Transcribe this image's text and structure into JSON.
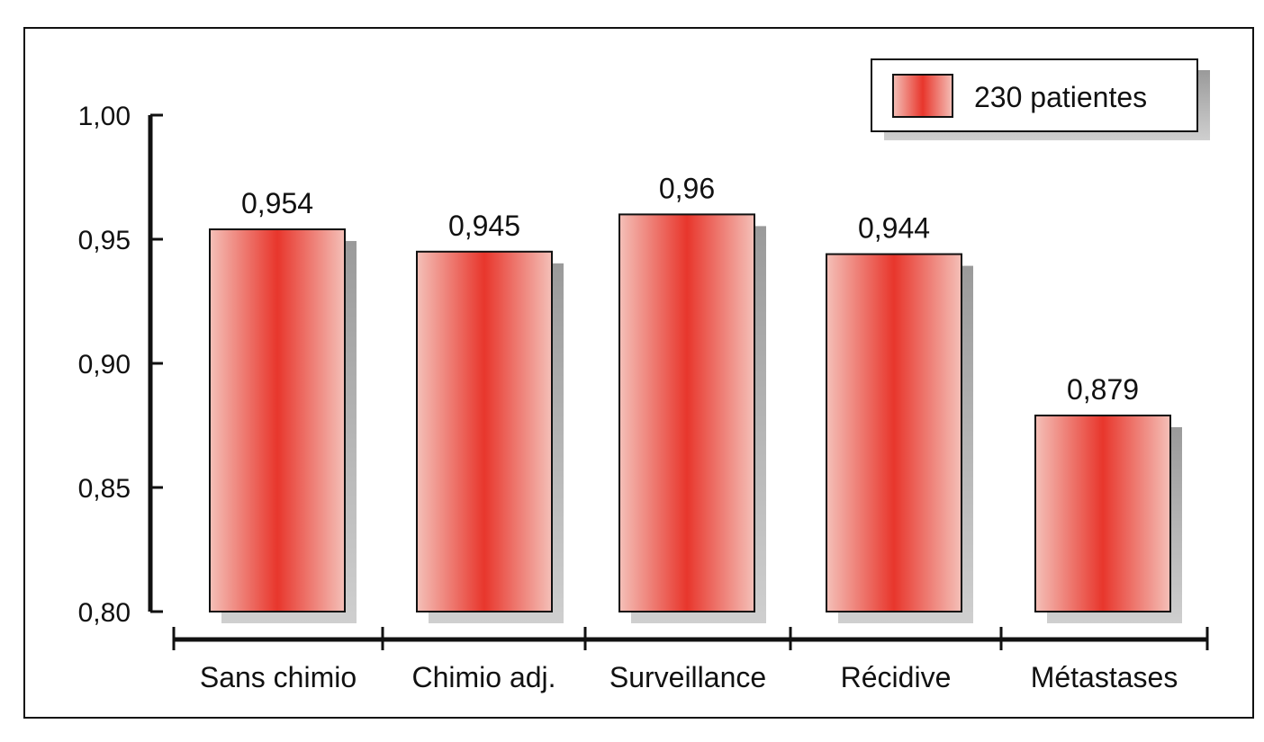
{
  "chart_data": {
    "type": "bar",
    "categories": [
      "Sans chimio",
      "Chimio adj.",
      "Surveillance",
      "Récidive",
      "Métastases"
    ],
    "values": [
      0.954,
      0.945,
      0.96,
      0.944,
      0.879
    ],
    "value_labels": [
      "0,954",
      "0,945",
      "0,96",
      "0,944",
      "0,879"
    ],
    "series": [
      {
        "name": "230 patientes",
        "values": [
          0.954,
          0.945,
          0.96,
          0.944,
          0.879
        ]
      }
    ],
    "yticks": [
      0.8,
      0.85,
      0.9,
      0.95,
      1.0
    ],
    "ytick_labels": [
      "0,80",
      "0,85",
      "0,90",
      "0,95",
      "1,00"
    ],
    "ylim": [
      0.8,
      1.0
    ],
    "legend": {
      "label": "230 patientes",
      "position": "top-right"
    },
    "grid": false,
    "colors": {
      "bar_center": "#e8362c",
      "bar_edge": "#f4c0b8",
      "shadow": "#b0b0b0",
      "axis": "#111111"
    }
  }
}
